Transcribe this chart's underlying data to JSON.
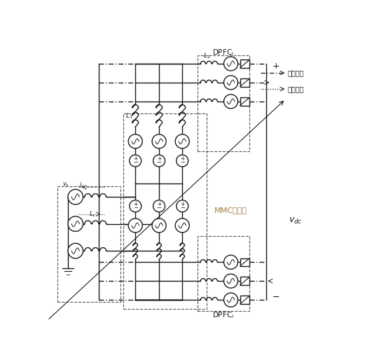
{
  "bg_color": "#ffffff",
  "line_color": "#1a1a1a",
  "dash_color": "#555555",
  "figsize": [
    5.31,
    5.14
  ],
  "dpi": 100,
  "mmc_label": "MMC换流站",
  "mmc_label_color": "#a08040",
  "vdc_label": "v",
  "dpfc_label": "DPFC",
  "dc_legend": "直流电流",
  "ac_legend": "交流电流",
  "L1_label": "L",
  "L2_label": "L",
  "Ls_label": "L",
  "vs_label": "v",
  "is_label": "i"
}
